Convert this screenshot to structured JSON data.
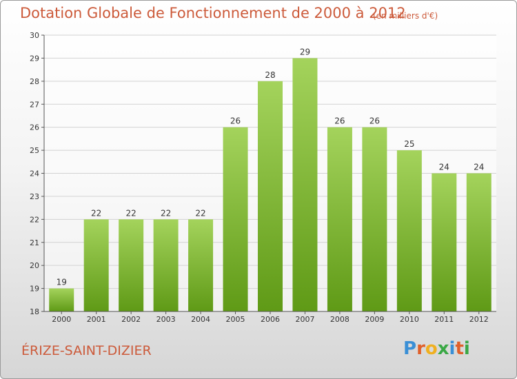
{
  "header": {
    "title": "Dotation Globale de Fonctionnement de 2000 à 2012",
    "units": "(en milliers d'€)"
  },
  "footer": {
    "commune": "ÉRIZE-SAINT-DIZIER",
    "brand": "Proxiti",
    "brand_colors": [
      "#3a8fd6",
      "#e0602a",
      "#f0b020",
      "#3aa845",
      "#3a8fd6",
      "#e0602a",
      "#3aa845"
    ]
  },
  "chart_data": {
    "type": "bar",
    "categories": [
      "2000",
      "2001",
      "2002",
      "2003",
      "2004",
      "2005",
      "2006",
      "2007",
      "2008",
      "2009",
      "2010",
      "2011",
      "2012"
    ],
    "values": [
      19,
      22,
      22,
      22,
      22,
      26,
      28,
      29,
      26,
      26,
      25,
      24,
      24
    ],
    "ylim": [
      18,
      30
    ],
    "yticks": [
      18,
      19,
      20,
      21,
      22,
      23,
      24,
      25,
      26,
      27,
      28,
      29,
      30
    ],
    "grid": true,
    "bar_color_top": "#a4d35c",
    "bar_color_bottom": "#5f9a16"
  }
}
